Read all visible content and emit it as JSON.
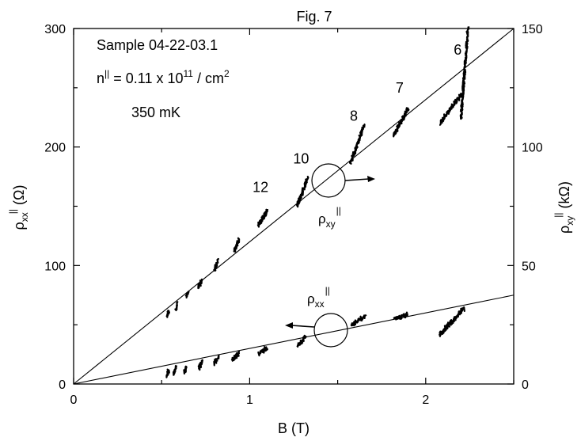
{
  "chart_data": {
    "type": "line",
    "title": "Fig. 7",
    "xlabel": "B (T)",
    "ylabel_left": {
      "main": "ρ",
      "sub": "xx",
      "sup": "||",
      "unit": " (Ω)"
    },
    "ylabel_right": {
      "main": "ρ",
      "sub": "xy",
      "sup": "||",
      "unit": " (kΩ)"
    },
    "xlim": [
      0,
      2.5
    ],
    "ylim_left": [
      0,
      300
    ],
    "ylim_right": [
      0,
      150
    ],
    "xticks": [
      0,
      1,
      2
    ],
    "yticks_left": [
      0,
      100,
      200,
      300
    ],
    "yticks_right": [
      0,
      50,
      100,
      150
    ],
    "grid": false,
    "annotations": {
      "sample": "Sample 04-22-03.1",
      "density": {
        "main": "n",
        "sup1": "||",
        "mid": " = 0.11 x 10",
        "sup2": "11",
        "tail": " / cm",
        "sup3": "2"
      },
      "temperature": "350 mK",
      "rho_xy_label": {
        "main": "ρ",
        "sub": "xy",
        "sup": "||"
      },
      "rho_xx_label": {
        "main": "ρ",
        "sub": "xx",
        "sup": "||"
      }
    },
    "filling_factors": [
      {
        "label": "12",
        "B": 1.08,
        "rho_xy": 77
      },
      {
        "label": "10",
        "B": 1.31,
        "rho_xy": 89
      },
      {
        "label": "8",
        "B": 1.61,
        "rho_xy": 107
      },
      {
        "label": "7",
        "B": 1.87,
        "rho_xy": 119
      },
      {
        "label": "6",
        "B": 2.2,
        "rho_xy": 135
      }
    ],
    "series": [
      {
        "name": "ρxy fit",
        "axis": "right",
        "style": "line",
        "x": [
          0,
          2.5
        ],
        "y": [
          0,
          150
        ]
      },
      {
        "name": "ρxx fit",
        "axis": "left",
        "style": "line",
        "x": [
          0,
          2.5
        ],
        "y": [
          0,
          75
        ]
      },
      {
        "name": "ρxy||",
        "axis": "right",
        "style": "noisy",
        "segments": [
          {
            "x": [
              0.53,
              0.54
            ],
            "y": [
              29,
              31
            ]
          },
          {
            "x": [
              0.58,
              0.59
            ],
            "y": [
              31,
              34
            ]
          },
          {
            "x": [
              0.64,
              0.65
            ],
            "y": [
              37,
              39
            ]
          },
          {
            "x": [
              0.71,
              0.73
            ],
            "y": [
              41,
              44
            ]
          },
          {
            "x": [
              0.8,
              0.82
            ],
            "y": [
              48,
              52
            ]
          },
          {
            "x": [
              0.91,
              0.94
            ],
            "y": [
              56,
              61
            ]
          },
          {
            "x": [
              1.05,
              1.1
            ],
            "y": [
              67,
              73
            ]
          },
          {
            "x": [
              1.27,
              1.33
            ],
            "y": [
              75,
              87
            ]
          },
          {
            "x": [
              1.57,
              1.65
            ],
            "y": [
              93,
              109
            ]
          },
          {
            "x": [
              1.82,
              1.9
            ],
            "y": [
              105,
              116
            ]
          },
          {
            "x": [
              2.08,
              2.2
            ],
            "y": [
              110,
              122
            ]
          },
          {
            "x": [
              2.2,
              2.24
            ],
            "y": [
              112,
              150
            ]
          }
        ]
      },
      {
        "name": "ρxx||",
        "axis": "left",
        "style": "noisy",
        "segments": [
          {
            "x": [
              0.53,
              0.54
            ],
            "y": [
              6,
              12
            ]
          },
          {
            "x": [
              0.57,
              0.58
            ],
            "y": [
              8,
              14
            ]
          },
          {
            "x": [
              0.63,
              0.64
            ],
            "y": [
              10,
              15
            ]
          },
          {
            "x": [
              0.71,
              0.73
            ],
            "y": [
              13,
              19
            ]
          },
          {
            "x": [
              0.8,
              0.82
            ],
            "y": [
              17,
              23
            ]
          },
          {
            "x": [
              0.9,
              0.94
            ],
            "y": [
              20,
              26
            ]
          },
          {
            "x": [
              1.05,
              1.1
            ],
            "y": [
              25,
              31
            ]
          },
          {
            "x": [
              1.27,
              1.32
            ],
            "y": [
              32,
              40
            ]
          },
          {
            "x": [
              1.58,
              1.66
            ],
            "y": [
              50,
              58
            ]
          },
          {
            "x": [
              1.82,
              1.9
            ],
            "y": [
              54,
              59
            ]
          },
          {
            "x": [
              2.08,
              2.22
            ],
            "y": [
              42,
              64
            ]
          }
        ]
      }
    ]
  }
}
